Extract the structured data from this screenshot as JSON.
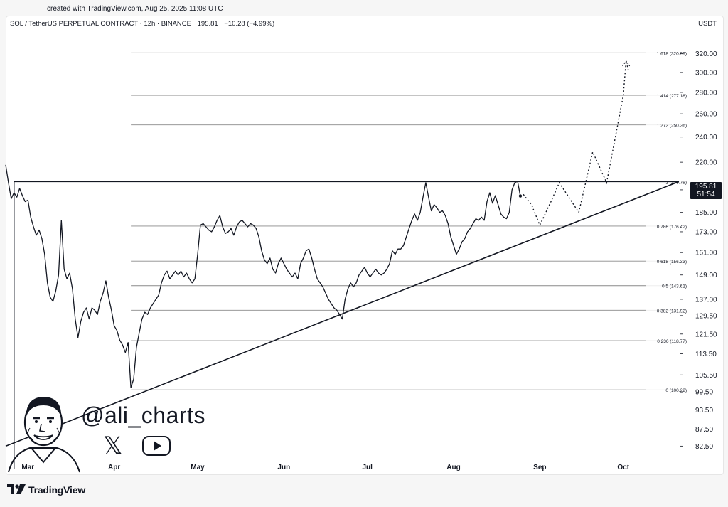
{
  "created_text": "created with TradingView.com, Aug 25, 2025 11:08 UTC",
  "header": {
    "symbol": "SOL / TetherUS PERPETUAL CONTRACT · 12h · BINANCE",
    "price": "195.81",
    "change": "−10.28 (−4.99%)"
  },
  "currency": "USDT",
  "price_badge": {
    "price": "195.81",
    "countdown": "51:54"
  },
  "watermark": {
    "handle": "@ali_charts"
  },
  "brand": "TradingView",
  "chart_data": {
    "type": "line",
    "title": "",
    "xlabel": "",
    "ylabel": "",
    "x_ticks": [
      "Mar",
      "Apr",
      "May",
      "Jun",
      "Jul",
      "Aug",
      "Sep",
      "Oct"
    ],
    "y_scale": "log",
    "y_ticks": [
      82.5,
      87.5,
      93.5,
      99.5,
      105.5,
      113.5,
      121.5,
      129.5,
      137.0,
      149.0,
      161.0,
      173.0,
      185.0,
      200.0,
      220.0,
      240.0,
      260.0,
      280.0,
      300.0,
      320.0
    ],
    "y_tick_labels": [
      "82.50",
      "87.50",
      "93.50",
      "99.50",
      "105.50",
      "113.50",
      "121.50",
      "129.50",
      "137.00",
      "149.00",
      "161.00",
      "173.00",
      "185.00",
      "200.00",
      "220.00",
      "240.00",
      "260.00",
      "280.00",
      "300.00",
      "320.00"
    ],
    "ylim": [
      79,
      345
    ],
    "fib_levels": [
      {
        "label": "0 (100.22)",
        "value": 100.22
      },
      {
        "label": "0.236 (118.77)",
        "value": 118.77
      },
      {
        "label": "0.382 (131.92)",
        "value": 131.92
      },
      {
        "label": "0.5 (143.61)",
        "value": 143.61
      },
      {
        "label": "0.618 (156.33)",
        "value": 156.33
      },
      {
        "label": "0.786 (176.42)",
        "value": 176.42
      },
      {
        "label": "1 (205.78)",
        "value": 205.78
      },
      {
        "label": "1.272 (250.26)",
        "value": 250.26
      },
      {
        "label": "1.414 (277.18)",
        "value": 277.18
      },
      {
        "label": "1.618 (320.99)",
        "value": 320.99
      }
    ],
    "series": [
      {
        "values": [
          [
            "2025-02-21",
            218
          ],
          [
            "2025-02-22",
            205
          ],
          [
            "2025-02-23",
            194
          ],
          [
            "2025-02-24",
            198
          ],
          [
            "2025-02-25",
            195
          ],
          [
            "2025-02-26",
            201
          ],
          [
            "2025-02-27",
            196
          ],
          [
            "2025-02-28",
            192
          ],
          [
            "2025-03-01",
            193
          ],
          [
            "2025-03-02",
            182
          ],
          [
            "2025-03-03",
            176
          ],
          [
            "2025-03-04",
            171
          ],
          [
            "2025-03-05",
            174
          ],
          [
            "2025-03-06",
            169
          ],
          [
            "2025-03-07",
            160
          ],
          [
            "2025-03-08",
            145
          ],
          [
            "2025-03-09",
            138
          ],
          [
            "2025-03-10",
            136
          ],
          [
            "2025-03-11",
            141
          ],
          [
            "2025-03-12",
            149
          ],
          [
            "2025-03-13",
            180
          ],
          [
            "2025-03-14",
            152
          ],
          [
            "2025-03-15",
            147
          ],
          [
            "2025-03-16",
            150
          ],
          [
            "2025-03-17",
            142
          ],
          [
            "2025-03-18",
            128
          ],
          [
            "2025-03-19",
            120
          ],
          [
            "2025-03-20",
            127
          ],
          [
            "2025-03-21",
            131
          ],
          [
            "2025-03-22",
            133
          ],
          [
            "2025-03-23",
            128
          ],
          [
            "2025-03-24",
            133
          ],
          [
            "2025-03-25",
            132
          ],
          [
            "2025-03-26",
            130
          ],
          [
            "2025-03-27",
            136
          ],
          [
            "2025-03-28",
            140
          ],
          [
            "2025-03-29",
            146
          ],
          [
            "2025-03-30",
            138
          ],
          [
            "2025-03-31",
            132
          ],
          [
            "2025-04-01",
            125
          ],
          [
            "2025-04-02",
            123
          ],
          [
            "2025-04-03",
            119
          ],
          [
            "2025-04-04",
            117
          ],
          [
            "2025-04-05",
            114
          ],
          [
            "2025-04-06",
            118
          ],
          [
            "2025-04-07",
            101
          ],
          [
            "2025-04-08",
            104
          ],
          [
            "2025-04-09",
            116
          ],
          [
            "2025-04-10",
            122
          ],
          [
            "2025-04-11",
            128
          ],
          [
            "2025-04-12",
            131
          ],
          [
            "2025-04-13",
            130
          ],
          [
            "2025-04-14",
            133
          ],
          [
            "2025-04-15",
            135
          ],
          [
            "2025-04-16",
            137
          ],
          [
            "2025-04-17",
            139
          ],
          [
            "2025-04-18",
            145
          ],
          [
            "2025-04-19",
            149
          ],
          [
            "2025-04-20",
            151
          ],
          [
            "2025-04-21",
            147
          ],
          [
            "2025-04-22",
            149
          ],
          [
            "2025-04-23",
            151
          ],
          [
            "2025-04-24",
            149
          ],
          [
            "2025-04-25",
            151
          ],
          [
            "2025-04-26",
            148
          ],
          [
            "2025-04-27",
            150
          ],
          [
            "2025-04-28",
            147
          ],
          [
            "2025-04-29",
            145
          ],
          [
            "2025-04-30",
            147
          ],
          [
            "2025-05-01",
            160
          ],
          [
            "2025-05-02",
            177
          ],
          [
            "2025-05-03",
            178
          ],
          [
            "2025-05-04",
            176
          ],
          [
            "2025-05-05",
            174
          ],
          [
            "2025-05-06",
            173
          ],
          [
            "2025-05-07",
            176
          ],
          [
            "2025-05-08",
            180
          ],
          [
            "2025-05-09",
            183
          ],
          [
            "2025-05-10",
            176
          ],
          [
            "2025-05-11",
            172
          ],
          [
            "2025-05-12",
            173
          ],
          [
            "2025-05-13",
            175
          ],
          [
            "2025-05-14",
            171
          ],
          [
            "2025-05-15",
            176
          ],
          [
            "2025-05-16",
            179
          ],
          [
            "2025-05-17",
            180
          ],
          [
            "2025-05-18",
            178
          ],
          [
            "2025-05-19",
            176
          ],
          [
            "2025-05-20",
            178
          ],
          [
            "2025-05-21",
            177
          ],
          [
            "2025-05-22",
            175
          ],
          [
            "2025-05-23",
            170
          ],
          [
            "2025-05-24",
            162
          ],
          [
            "2025-05-25",
            157
          ],
          [
            "2025-05-26",
            155
          ],
          [
            "2025-05-27",
            158
          ],
          [
            "2025-05-28",
            152
          ],
          [
            "2025-05-29",
            150
          ],
          [
            "2025-05-30",
            155
          ],
          [
            "2025-05-31",
            158
          ],
          [
            "2025-06-01",
            155
          ],
          [
            "2025-06-02",
            152
          ],
          [
            "2025-06-03",
            150
          ],
          [
            "2025-06-04",
            148
          ],
          [
            "2025-06-05",
            150
          ],
          [
            "2025-06-06",
            147
          ],
          [
            "2025-06-07",
            155
          ],
          [
            "2025-06-08",
            158
          ],
          [
            "2025-06-09",
            162
          ],
          [
            "2025-06-10",
            163
          ],
          [
            "2025-06-11",
            158
          ],
          [
            "2025-06-12",
            152
          ],
          [
            "2025-06-13",
            147
          ],
          [
            "2025-06-14",
            145
          ],
          [
            "2025-06-15",
            143
          ],
          [
            "2025-06-16",
            140
          ],
          [
            "2025-06-17",
            137
          ],
          [
            "2025-06-18",
            135
          ],
          [
            "2025-06-19",
            133
          ],
          [
            "2025-06-20",
            132
          ],
          [
            "2025-06-21",
            130
          ],
          [
            "2025-06-22",
            128
          ],
          [
            "2025-06-23",
            137
          ],
          [
            "2025-06-24",
            142
          ],
          [
            "2025-06-25",
            145
          ],
          [
            "2025-06-26",
            143
          ],
          [
            "2025-06-27",
            145
          ],
          [
            "2025-06-28",
            149
          ],
          [
            "2025-06-29",
            151
          ],
          [
            "2025-06-30",
            153
          ],
          [
            "2025-07-01",
            150
          ],
          [
            "2025-07-02",
            148
          ],
          [
            "2025-07-03",
            150
          ],
          [
            "2025-07-04",
            152
          ],
          [
            "2025-07-05",
            150
          ],
          [
            "2025-07-06",
            149
          ],
          [
            "2025-07-07",
            150
          ],
          [
            "2025-07-08",
            152
          ],
          [
            "2025-07-09",
            155
          ],
          [
            "2025-07-10",
            162
          ],
          [
            "2025-07-11",
            160
          ],
          [
            "2025-07-12",
            163
          ],
          [
            "2025-07-13",
            163
          ],
          [
            "2025-07-14",
            165
          ],
          [
            "2025-07-15",
            170
          ],
          [
            "2025-07-16",
            175
          ],
          [
            "2025-07-17",
            180
          ],
          [
            "2025-07-18",
            184
          ],
          [
            "2025-07-19",
            180
          ],
          [
            "2025-07-20",
            185
          ],
          [
            "2025-07-21",
            195
          ],
          [
            "2025-07-22",
            205
          ],
          [
            "2025-07-23",
            195
          ],
          [
            "2025-07-24",
            186
          ],
          [
            "2025-07-25",
            190
          ],
          [
            "2025-07-26",
            188
          ],
          [
            "2025-07-27",
            185
          ],
          [
            "2025-07-28",
            186
          ],
          [
            "2025-07-29",
            183
          ],
          [
            "2025-07-30",
            178
          ],
          [
            "2025-07-31",
            170
          ],
          [
            "2025-08-01",
            165
          ],
          [
            "2025-08-02",
            160
          ],
          [
            "2025-08-03",
            163
          ],
          [
            "2025-08-04",
            167
          ],
          [
            "2025-08-05",
            169
          ],
          [
            "2025-08-06",
            173
          ],
          [
            "2025-08-07",
            175
          ],
          [
            "2025-08-08",
            178
          ],
          [
            "2025-08-09",
            181
          ],
          [
            "2025-08-10",
            180
          ],
          [
            "2025-08-11",
            182
          ],
          [
            "2025-08-12",
            180
          ],
          [
            "2025-08-13",
            192
          ],
          [
            "2025-08-14",
            198
          ],
          [
            "2025-08-15",
            191
          ],
          [
            "2025-08-16",
            196
          ],
          [
            "2025-08-17",
            190
          ],
          [
            "2025-08-18",
            184
          ],
          [
            "2025-08-19",
            182
          ],
          [
            "2025-08-20",
            181
          ],
          [
            "2025-08-21",
            185
          ],
          [
            "2025-08-22",
            200
          ],
          [
            "2025-08-23",
            205
          ],
          [
            "2025-08-24",
            206
          ],
          [
            "2025-08-25",
            195.81
          ]
        ]
      }
    ],
    "projection": [
      [
        "2025-08-26",
        197
      ],
      [
        "2025-08-29",
        190
      ],
      [
        "2025-09-01",
        177
      ],
      [
        "2025-09-05",
        192
      ],
      [
        "2025-09-08",
        205
      ],
      [
        "2025-09-15",
        185
      ],
      [
        "2025-09-20",
        228
      ],
      [
        "2025-09-25",
        205
      ],
      [
        "2025-10-01",
        277
      ],
      [
        "2025-10-02",
        312
      ],
      [
        "2025-10-03",
        300
      ]
    ],
    "resistance": {
      "value": 205.78,
      "from": "2025-02-24",
      "to": "2025-10-21"
    },
    "support_trendline": {
      "from": [
        "2025-02-21",
        82.5
      ],
      "to": [
        "2025-10-21",
        205.78
      ]
    }
  }
}
